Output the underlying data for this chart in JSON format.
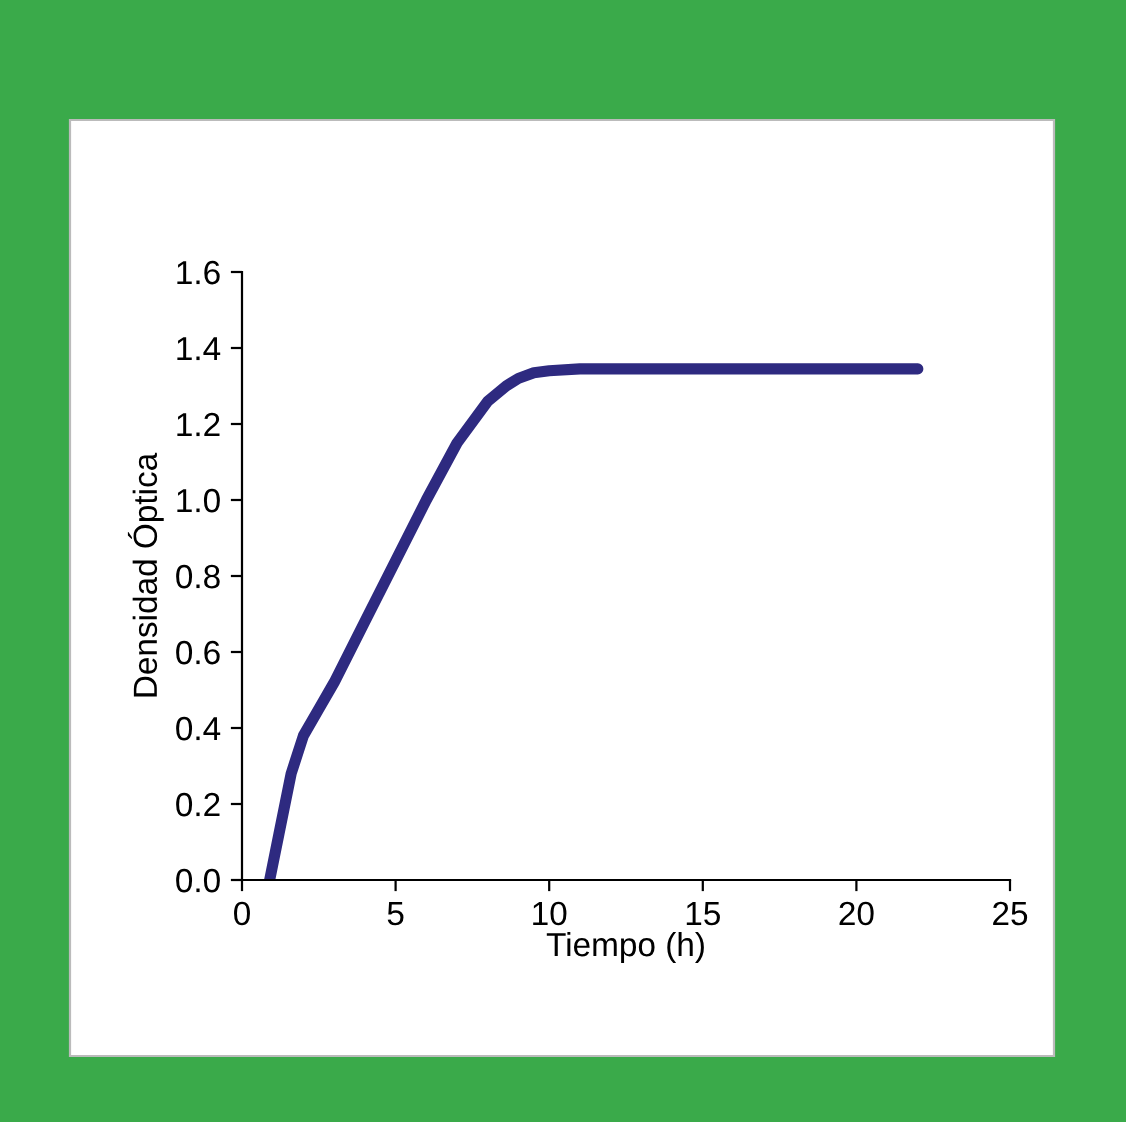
{
  "chart_data": {
    "type": "line",
    "xlabel": "Tiempo (h)",
    "ylabel": "Densidad Óptica",
    "x": [
      0.9,
      1.2,
      1.6,
      2,
      2.5,
      3,
      4,
      5,
      6,
      7,
      8,
      8.6,
      9,
      9.5,
      10,
      11,
      12,
      15,
      22
    ],
    "series": [
      {
        "color": "#2e2a80",
        "values": [
          0,
          0.12,
          0.28,
          0.38,
          0.45,
          0.52,
          0.68,
          0.84,
          1.0,
          1.15,
          1.26,
          1.3,
          1.32,
          1.335,
          1.34,
          1.345,
          1.345,
          1.345,
          1.345
        ]
      }
    ],
    "xlim": [
      0,
      25
    ],
    "xticks": [
      0,
      5,
      10,
      15,
      20,
      25
    ],
    "ylim": [
      0,
      1.6
    ],
    "yticks": [
      {
        "value": 0,
        "label": "0.0"
      },
      {
        "value": 0.2,
        "label": "0.2"
      },
      {
        "value": 0.4,
        "label": "0.4"
      },
      {
        "value": 0.6,
        "label": "0.6"
      },
      {
        "value": 0.8,
        "label": "0.8"
      },
      {
        "value": 1.0,
        "label": "1.0"
      },
      {
        "value": 1.2,
        "label": "1.2"
      },
      {
        "value": 1.4,
        "label": "1.4"
      },
      {
        "value": 1.6,
        "label": "1.6"
      }
    ],
    "grid": false,
    "legend": false,
    "marker": "none",
    "line_style": "solid"
  }
}
